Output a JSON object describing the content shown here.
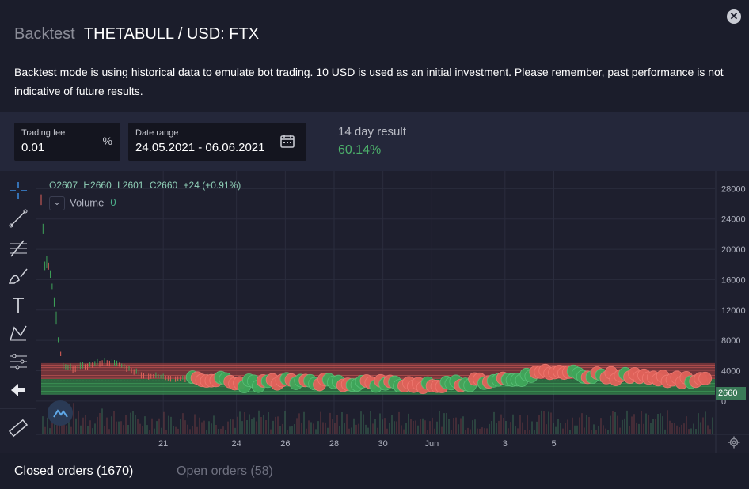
{
  "header": {
    "title_prefix": "Backtest",
    "title_pair": "THETABULL / USD: FTX",
    "description": "Backtest mode is using historical data to emulate bot trading. 10 USD is used as an initial investment. Please remember, past performance is not indicative of future results.",
    "close_icon": "close-icon"
  },
  "controls": {
    "fee_label": "Trading fee",
    "fee_value": "0.01",
    "fee_unit": "%",
    "range_label": "Date range",
    "range_value": "24.05.2021 - 06.06.2021",
    "calendar_icon": "calendar-icon",
    "result_label": "14 day result",
    "result_value": "60.14%",
    "result_color": "#4caf6a"
  },
  "chart": {
    "ohlc": {
      "open": "O2607",
      "high": "H2660",
      "low": "L2601",
      "close": "C2660",
      "change": "+24 (+0.91%)"
    },
    "volume_label": "Volume",
    "volume_value": "0",
    "last_price": "2660",
    "up_color": "#3fa65a",
    "down_color": "#e0625a"
  },
  "chart_data": {
    "type": "line",
    "y_ticks": [
      "28000",
      "24000",
      "20000",
      "16000",
      "12000",
      "8000",
      "4000",
      "0"
    ],
    "x_ticks": [
      "21",
      "24",
      "26",
      "28",
      "30",
      "Jun",
      "3",
      "5"
    ],
    "ylim": [
      -2000,
      29500
    ],
    "price_series": [
      {
        "x": 0,
        "y": 27000
      },
      {
        "x": 0.15,
        "y": 17500
      },
      {
        "x": 0.3,
        "y": 18000
      },
      {
        "x": 0.45,
        "y": 15000
      },
      {
        "x": 0.7,
        "y": 8000
      },
      {
        "x": 0.9,
        "y": 4500
      },
      {
        "x": 1.3,
        "y": 4300
      },
      {
        "x": 1.8,
        "y": 4600
      },
      {
        "x": 2.6,
        "y": 5200
      },
      {
        "x": 3.2,
        "y": 4800
      },
      {
        "x": 4.2,
        "y": 3400
      },
      {
        "x": 5.5,
        "y": 3000
      },
      {
        "x": 6.5,
        "y": 3200
      },
      {
        "x": 7.4,
        "y": 2700
      },
      {
        "x": 8,
        "y": 2300
      },
      {
        "x": 9,
        "y": 2400
      },
      {
        "x": 10,
        "y": 2500
      },
      {
        "x": 11,
        "y": 2700
      },
      {
        "x": 12,
        "y": 2500
      },
      {
        "x": 13,
        "y": 2400
      },
      {
        "x": 14,
        "y": 2300
      },
      {
        "x": 15,
        "y": 2200
      },
      {
        "x": 16,
        "y": 2100
      },
      {
        "x": 17,
        "y": 2300
      },
      {
        "x": 18,
        "y": 2700
      },
      {
        "x": 19,
        "y": 3000
      },
      {
        "x": 20,
        "y": 3200
      },
      {
        "x": 21,
        "y": 4000
      },
      {
        "x": 22,
        "y": 3600
      },
      {
        "x": 23,
        "y": 3400
      },
      {
        "x": 24,
        "y": 3200
      },
      {
        "x": 25,
        "y": 3100
      },
      {
        "x": 26,
        "y": 2900
      },
      {
        "x": 27,
        "y": 2800
      },
      {
        "x": 27.5,
        "y": 2700
      }
    ],
    "x_tick_positions": [
      5,
      8,
      10,
      12,
      14,
      16,
      19,
      21
    ],
    "trade_markers": {
      "from_x": 6.2,
      "to_x": 27.2,
      "count": 110
    }
  },
  "tabs": {
    "closed": "Closed orders (1670)",
    "open": "Open orders (58)"
  },
  "toolbar": [
    {
      "name": "crosshair-icon"
    },
    {
      "name": "trend-line-icon"
    },
    {
      "name": "fib-tool-icon"
    },
    {
      "name": "brush-icon"
    },
    {
      "name": "text-tool-icon"
    },
    {
      "name": "pattern-icon"
    },
    {
      "name": "prediction-tool-icon"
    },
    {
      "name": "back-arrow-icon"
    },
    {
      "name": "ruler-icon"
    }
  ]
}
